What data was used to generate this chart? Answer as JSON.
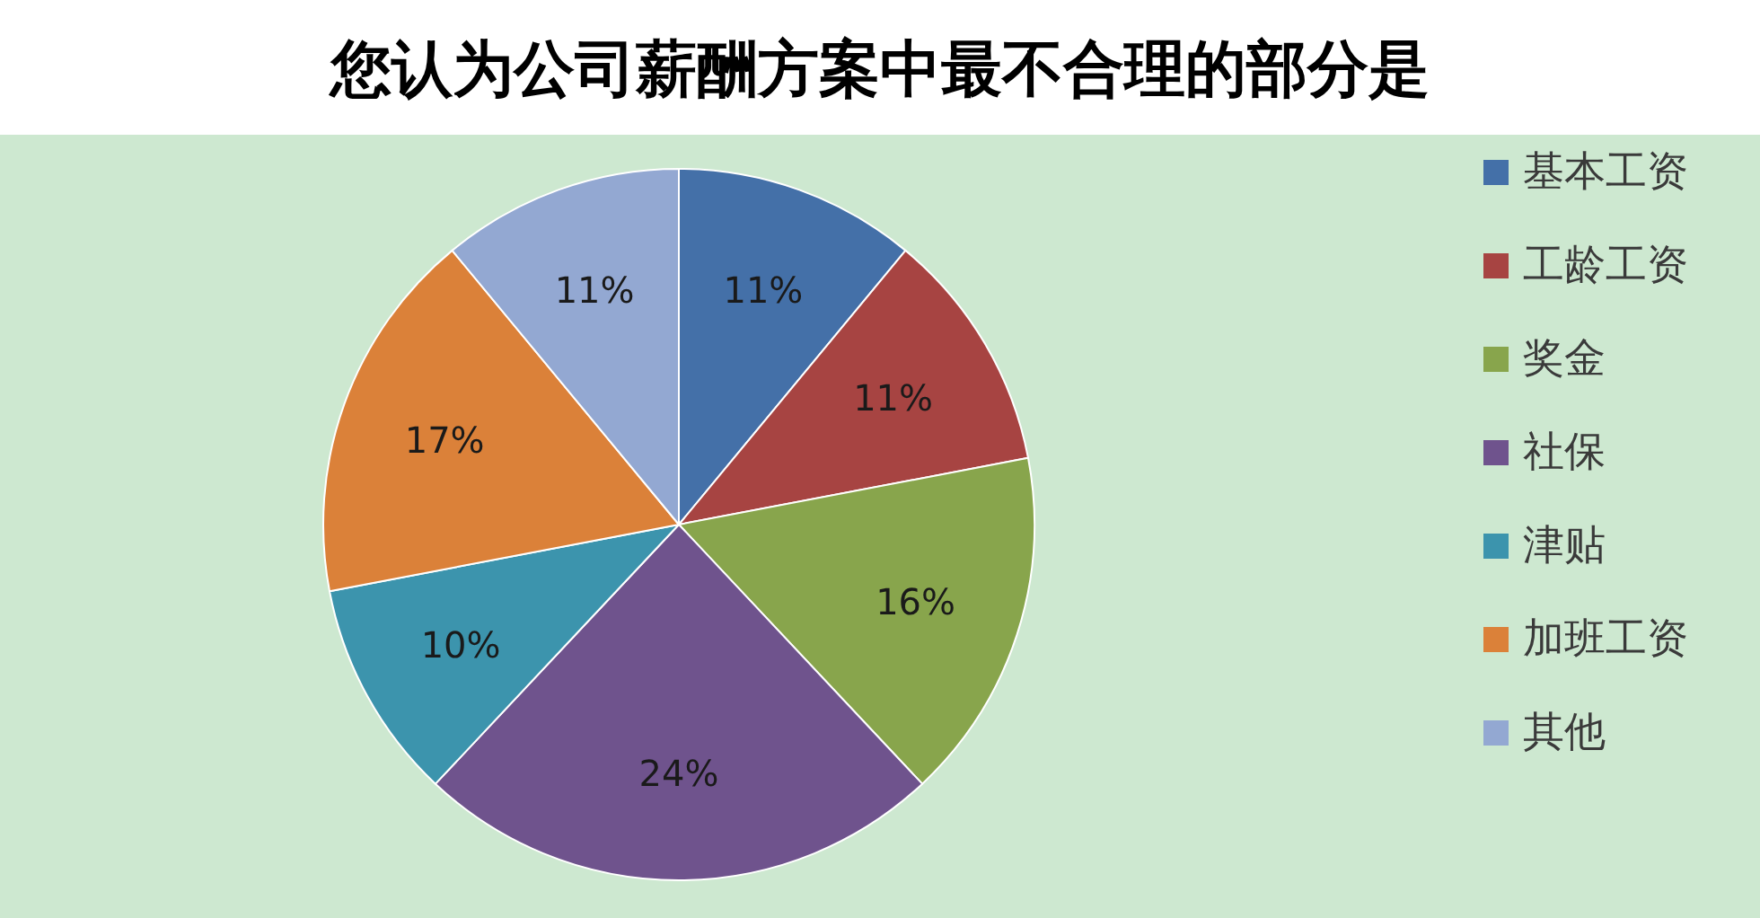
{
  "chart_data": {
    "type": "pie",
    "title": "您认为公司薪酬方案中最不合理的部分是",
    "categories": [
      "基本工资",
      "工龄工资",
      "奖金",
      "社保",
      "津贴",
      "加班工资",
      "其他"
    ],
    "values": [
      11,
      11,
      16,
      24,
      10,
      17,
      11
    ],
    "colors": [
      "#4470a8",
      "#a74442",
      "#88a54c",
      "#6f538d",
      "#3c94ad",
      "#db8139",
      "#93a8d2"
    ],
    "value_labels": [
      "11%",
      "11%",
      "16%",
      "24%",
      "10%",
      "17%",
      "11%"
    ],
    "legend": "right"
  }
}
